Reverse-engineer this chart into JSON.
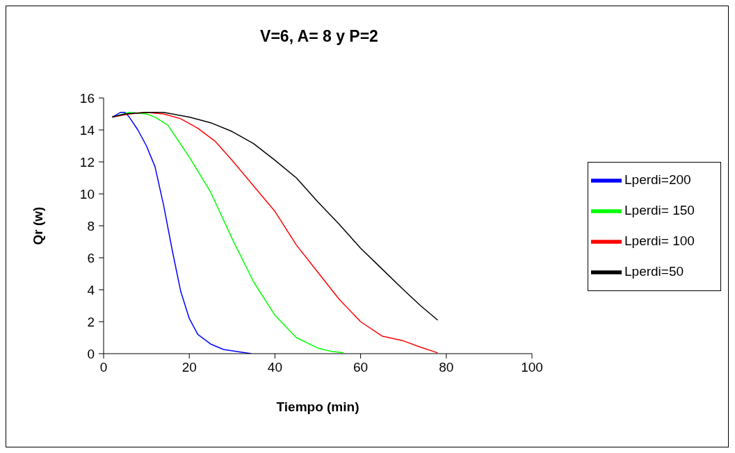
{
  "chart_data": {
    "type": "line",
    "title": "V=6, A= 8 y P=2",
    "xlabel": "Tiempo (min)",
    "ylabel": "Qr (w)",
    "xlim": [
      0,
      100
    ],
    "xticks": [
      0,
      20,
      40,
      60,
      80,
      100
    ],
    "ylim": [
      0,
      16
    ],
    "yticks": [
      0,
      2,
      4,
      6,
      8,
      10,
      12,
      14,
      16
    ],
    "grid": false,
    "legend": "right",
    "marker": "none",
    "line_style": "solid",
    "series": [
      {
        "name": "Lperdi=200",
        "color": "#0000ff",
        "x": [
          2,
          4,
          5,
          6,
          8,
          10,
          12,
          14,
          16,
          18,
          20,
          22,
          25,
          28,
          32,
          34.5
        ],
        "values": [
          14.8,
          15.1,
          15.1,
          14.8,
          14.0,
          13.0,
          11.7,
          9.3,
          6.5,
          3.9,
          2.2,
          1.2,
          0.6,
          0.26,
          0.1,
          0
        ]
      },
      {
        "name": "Lperdi= 150",
        "color": "#00ff00",
        "x": [
          2,
          6,
          10,
          12,
          15,
          20,
          25,
          30,
          35,
          40,
          45,
          50,
          53,
          56
        ],
        "values": [
          14.8,
          15.1,
          15.0,
          14.8,
          14.3,
          12.3,
          10.1,
          7.2,
          4.5,
          2.4,
          1.0,
          0.35,
          0.15,
          0.05
        ]
      },
      {
        "name": "Lperdi= 100",
        "color": "#ff0000",
        "x": [
          2,
          6,
          10,
          14,
          18,
          22,
          26,
          30,
          35,
          40,
          45,
          50,
          55,
          60,
          65,
          70,
          74,
          78
        ],
        "values": [
          14.8,
          15.0,
          15.1,
          15.0,
          14.7,
          14.1,
          13.3,
          12.1,
          10.5,
          8.9,
          6.8,
          5.1,
          3.4,
          2.0,
          1.1,
          0.8,
          0.4,
          0.05
        ]
      },
      {
        "name": "Lperdi=50",
        "color": "#000000",
        "x": [
          2,
          5,
          10,
          14,
          20,
          25,
          30,
          35,
          40,
          45,
          50,
          55,
          60,
          65,
          70,
          74,
          78
        ],
        "values": [
          14.8,
          15.0,
          15.1,
          15.1,
          14.8,
          14.45,
          13.9,
          13.15,
          12.1,
          11.0,
          9.5,
          8.1,
          6.6,
          5.3,
          4.0,
          3.0,
          2.1
        ]
      }
    ]
  }
}
